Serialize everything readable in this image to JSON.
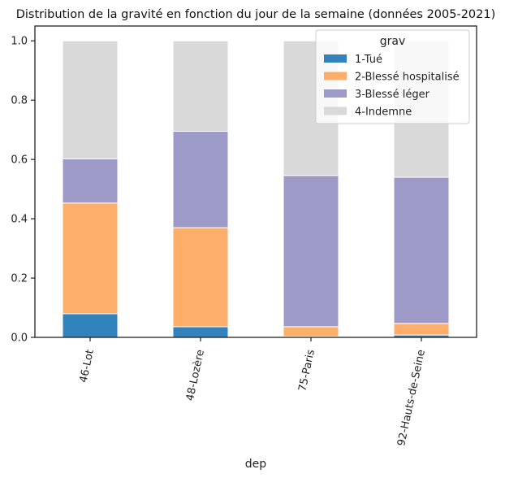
{
  "chart_data": {
    "type": "bar",
    "stacked": true,
    "title": "Distribution de la gravité en fonction du jour de la semaine (données 2005-2021)",
    "xlabel": "dep",
    "ylabel": "",
    "categories": [
      "46-Lot",
      "48-Lozère",
      "75-Paris",
      "92-Hauts-de-Seine"
    ],
    "ylim": [
      0,
      1.05
    ],
    "yticks": [
      "0.0",
      "0.2",
      "0.4",
      "0.6",
      "0.8",
      "1.0"
    ],
    "ytick_values": [
      0,
      0.2,
      0.4,
      0.6,
      0.8,
      1.0
    ],
    "grid": false,
    "legend": {
      "title": "grav",
      "placement": "top-right"
    },
    "series": [
      {
        "name": "1-Tué",
        "color": "#3182bd",
        "values": [
          0.08,
          0.036,
          0.003,
          0.008
        ]
      },
      {
        "name": "2-Blessé hospitalisé",
        "color": "#fdae6b",
        "values": [
          0.373,
          0.334,
          0.033,
          0.039
        ]
      },
      {
        "name": "3-Blessé léger",
        "color": "#9e9ac8",
        "values": [
          0.149,
          0.325,
          0.51,
          0.493
        ]
      },
      {
        "name": "4-Indemne",
        "color": "#d9d9d9",
        "values": [
          0.398,
          0.305,
          0.454,
          0.46
        ]
      }
    ]
  }
}
